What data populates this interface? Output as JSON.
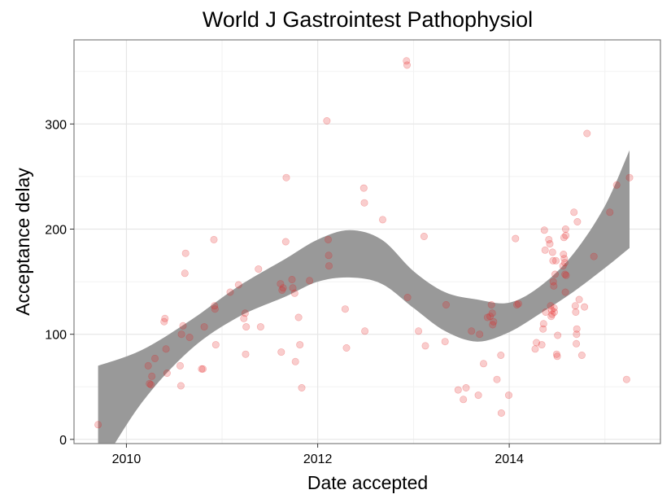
{
  "chart_data": {
    "type": "scatter",
    "title": "World J Gastrointest Pathophysiol",
    "xlabel": "Date accepted",
    "ylabel": "Acceptance delay",
    "xlim": [
      "2009-06-15",
      "2015-08-01"
    ],
    "ylim": [
      -4,
      380
    ],
    "x_ticks": [
      "2010-01-01",
      "2012-01-01",
      "2014-01-01"
    ],
    "x_tick_labels": [
      "2010",
      "2012",
      "2014"
    ],
    "y_ticks": [
      0,
      100,
      200,
      300
    ],
    "y_tick_labels": [
      "0",
      "100",
      "200",
      "300"
    ],
    "grid": true,
    "legend": "none",
    "point_color": "#e41a1c",
    "smooth_band_color": "#999999",
    "points": [
      {
        "x": "2009-09-15",
        "y": 14
      },
      {
        "x": "2010-03-25",
        "y": 70
      },
      {
        "x": "2010-03-30",
        "y": 53
      },
      {
        "x": "2010-04-05",
        "y": 52
      },
      {
        "x": "2010-04-08",
        "y": 60
      },
      {
        "x": "2010-04-20",
        "y": 77
      },
      {
        "x": "2010-05-25",
        "y": 112
      },
      {
        "x": "2010-05-28",
        "y": 115
      },
      {
        "x": "2010-06-01",
        "y": 86
      },
      {
        "x": "2010-06-05",
        "y": 63
      },
      {
        "x": "2010-07-25",
        "y": 70
      },
      {
        "x": "2010-07-28",
        "y": 51
      },
      {
        "x": "2010-07-30",
        "y": 100
      },
      {
        "x": "2010-08-05",
        "y": 108
      },
      {
        "x": "2010-08-12",
        "y": 158
      },
      {
        "x": "2010-08-15",
        "y": 177
      },
      {
        "x": "2010-08-30",
        "y": 97
      },
      {
        "x": "2010-10-15",
        "y": 67
      },
      {
        "x": "2010-10-20",
        "y": 67
      },
      {
        "x": "2010-10-25",
        "y": 107
      },
      {
        "x": "2010-12-01",
        "y": 190
      },
      {
        "x": "2010-12-03",
        "y": 127
      },
      {
        "x": "2010-12-05",
        "y": 124
      },
      {
        "x": "2010-12-08",
        "y": 90
      },
      {
        "x": "2011-02-01",
        "y": 140
      },
      {
        "x": "2011-03-05",
        "y": 147
      },
      {
        "x": "2011-03-25",
        "y": 115
      },
      {
        "x": "2011-03-30",
        "y": 120
      },
      {
        "x": "2011-04-01",
        "y": 81
      },
      {
        "x": "2011-04-03",
        "y": 107
      },
      {
        "x": "2011-05-20",
        "y": 162
      },
      {
        "x": "2011-05-28",
        "y": 107
      },
      {
        "x": "2011-08-12",
        "y": 148
      },
      {
        "x": "2011-08-15",
        "y": 83
      },
      {
        "x": "2011-08-18",
        "y": 142
      },
      {
        "x": "2011-08-22",
        "y": 144
      },
      {
        "x": "2011-09-01",
        "y": 188
      },
      {
        "x": "2011-09-03",
        "y": 249
      },
      {
        "x": "2011-09-25",
        "y": 152
      },
      {
        "x": "2011-09-28",
        "y": 144
      },
      {
        "x": "2011-10-05",
        "y": 139
      },
      {
        "x": "2011-10-08",
        "y": 74
      },
      {
        "x": "2011-10-20",
        "y": 116
      },
      {
        "x": "2011-10-25",
        "y": 90
      },
      {
        "x": "2011-11-01",
        "y": 49
      },
      {
        "x": "2011-12-01",
        "y": 151
      },
      {
        "x": "2012-02-05",
        "y": 303
      },
      {
        "x": "2012-02-10",
        "y": 190
      },
      {
        "x": "2012-02-12",
        "y": 175
      },
      {
        "x": "2012-02-13",
        "y": 165
      },
      {
        "x": "2012-04-15",
        "y": 124
      },
      {
        "x": "2012-04-20",
        "y": 87
      },
      {
        "x": "2012-06-25",
        "y": 239
      },
      {
        "x": "2012-06-27",
        "y": 225
      },
      {
        "x": "2012-06-29",
        "y": 103
      },
      {
        "x": "2012-09-05",
        "y": 209
      },
      {
        "x": "2012-12-05",
        "y": 360
      },
      {
        "x": "2012-12-07",
        "y": 356
      },
      {
        "x": "2012-12-09",
        "y": 135
      },
      {
        "x": "2013-01-20",
        "y": 103
      },
      {
        "x": "2013-02-10",
        "y": 193
      },
      {
        "x": "2013-02-15",
        "y": 89
      },
      {
        "x": "2013-05-01",
        "y": 93
      },
      {
        "x": "2013-05-05",
        "y": 128
      },
      {
        "x": "2013-06-20",
        "y": 47
      },
      {
        "x": "2013-07-10",
        "y": 38
      },
      {
        "x": "2013-07-20",
        "y": 49
      },
      {
        "x": "2013-08-10",
        "y": 103
      },
      {
        "x": "2013-09-05",
        "y": 42
      },
      {
        "x": "2013-09-10",
        "y": 100
      },
      {
        "x": "2013-09-25",
        "y": 72
      },
      {
        "x": "2013-10-10",
        "y": 116
      },
      {
        "x": "2013-10-20",
        "y": 117
      },
      {
        "x": "2013-10-25",
        "y": 128
      },
      {
        "x": "2013-10-28",
        "y": 120
      },
      {
        "x": "2013-10-30",
        "y": 109
      },
      {
        "x": "2013-11-02",
        "y": 112
      },
      {
        "x": "2013-11-15",
        "y": 57
      },
      {
        "x": "2013-11-30",
        "y": 80
      },
      {
        "x": "2013-12-02",
        "y": 25
      },
      {
        "x": "2013-12-30",
        "y": 42
      },
      {
        "x": "2014-01-25",
        "y": 191
      },
      {
        "x": "2014-01-30",
        "y": 128
      },
      {
        "x": "2014-02-05",
        "y": 129
      },
      {
        "x": "2014-04-10",
        "y": 86
      },
      {
        "x": "2014-04-15",
        "y": 92
      },
      {
        "x": "2014-05-05",
        "y": 90
      },
      {
        "x": "2014-05-10",
        "y": 105
      },
      {
        "x": "2014-05-12",
        "y": 110
      },
      {
        "x": "2014-05-15",
        "y": 199
      },
      {
        "x": "2014-05-18",
        "y": 180
      },
      {
        "x": "2014-05-20",
        "y": 121
      },
      {
        "x": "2014-06-01",
        "y": 190
      },
      {
        "x": "2014-06-05",
        "y": 186
      },
      {
        "x": "2014-06-08",
        "y": 127
      },
      {
        "x": "2014-06-10",
        "y": 117
      },
      {
        "x": "2014-06-12",
        "y": 123
      },
      {
        "x": "2014-06-14",
        "y": 119
      },
      {
        "x": "2014-06-15",
        "y": 178
      },
      {
        "x": "2014-06-17",
        "y": 170
      },
      {
        "x": "2014-06-18",
        "y": 150
      },
      {
        "x": "2014-06-20",
        "y": 146
      },
      {
        "x": "2014-06-21",
        "y": 125
      },
      {
        "x": "2014-06-22",
        "y": 121
      },
      {
        "x": "2014-06-25",
        "y": 157
      },
      {
        "x": "2014-06-28",
        "y": 170
      },
      {
        "x": "2014-07-01",
        "y": 81
      },
      {
        "x": "2014-07-03",
        "y": 79
      },
      {
        "x": "2014-07-05",
        "y": 99
      },
      {
        "x": "2014-07-25",
        "y": 165
      },
      {
        "x": "2014-07-27",
        "y": 176
      },
      {
        "x": "2014-07-29",
        "y": 192
      },
      {
        "x": "2014-07-30",
        "y": 172
      },
      {
        "x": "2014-08-01",
        "y": 168
      },
      {
        "x": "2014-08-02",
        "y": 157
      },
      {
        "x": "2014-08-03",
        "y": 140
      },
      {
        "x": "2014-08-04",
        "y": 200
      },
      {
        "x": "2014-08-05",
        "y": 194
      },
      {
        "x": "2014-08-06",
        "y": 156
      },
      {
        "x": "2014-09-05",
        "y": 216
      },
      {
        "x": "2014-09-10",
        "y": 127
      },
      {
        "x": "2014-09-12",
        "y": 121
      },
      {
        "x": "2014-09-14",
        "y": 91
      },
      {
        "x": "2014-09-15",
        "y": 100
      },
      {
        "x": "2014-09-16",
        "y": 105
      },
      {
        "x": "2014-09-18",
        "y": 207
      },
      {
        "x": "2014-09-25",
        "y": 133
      },
      {
        "x": "2014-10-05",
        "y": 80
      },
      {
        "x": "2014-10-15",
        "y": 126
      },
      {
        "x": "2014-10-25",
        "y": 291
      },
      {
        "x": "2014-11-20",
        "y": 174
      },
      {
        "x": "2015-01-20",
        "y": 216
      },
      {
        "x": "2015-02-15",
        "y": 242
      },
      {
        "x": "2015-03-25",
        "y": 57
      },
      {
        "x": "2015-04-05",
        "y": 249
      }
    ],
    "smooth_band": [
      {
        "x": "2009-09-15",
        "upper": 70,
        "lower": -30
      },
      {
        "x": "2010-03-01",
        "upper": 85,
        "lower": 35
      },
      {
        "x": "2010-09-01",
        "upper": 113,
        "lower": 85
      },
      {
        "x": "2011-03-01",
        "upper": 145,
        "lower": 116
      },
      {
        "x": "2011-09-01",
        "upper": 172,
        "lower": 136
      },
      {
        "x": "2012-01-01",
        "upper": 190,
        "lower": 150
      },
      {
        "x": "2012-05-01",
        "upper": 199,
        "lower": 154
      },
      {
        "x": "2012-09-01",
        "upper": 190,
        "lower": 148
      },
      {
        "x": "2013-01-01",
        "upper": 160,
        "lower": 125
      },
      {
        "x": "2013-05-01",
        "upper": 140,
        "lower": 103
      },
      {
        "x": "2013-09-01",
        "upper": 133,
        "lower": 93
      },
      {
        "x": "2014-01-01",
        "upper": 130,
        "lower": 102
      },
      {
        "x": "2014-05-01",
        "upper": 146,
        "lower": 120
      },
      {
        "x": "2014-09-01",
        "upper": 176,
        "lower": 140
      },
      {
        "x": "2015-01-01",
        "upper": 222,
        "lower": 163
      },
      {
        "x": "2015-04-05",
        "upper": 275,
        "lower": 182
      }
    ]
  }
}
